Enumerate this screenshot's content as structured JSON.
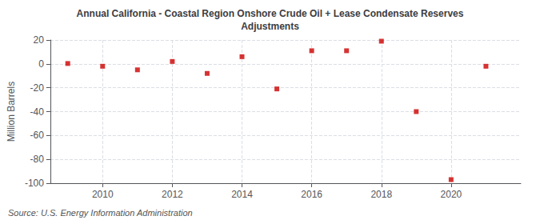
{
  "chart_data": {
    "type": "scatter",
    "title": "Annual California - Coastal Region Onshore Crude Oil + Lease Condensate Reserves\nAdjustments",
    "ylabel": "Million Barrels",
    "source": "Source: U.S. Energy Information Administration",
    "x": [
      2009,
      2010,
      2011,
      2012,
      2013,
      2014,
      2015,
      2016,
      2017,
      2018,
      2019,
      2020,
      2021
    ],
    "values": [
      0.3,
      -2.0,
      -5.0,
      2.0,
      -8.0,
      6.0,
      -21.0,
      11.0,
      11.0,
      19.0,
      -40.0,
      -97.0,
      -2.0
    ],
    "color": "#cc0000",
    "marker": "square",
    "xlim": [
      2008.5,
      2022.0
    ],
    "xticks": [
      2010,
      2012,
      2014,
      2016,
      2018,
      2020
    ],
    "ylim": [
      -100,
      20
    ],
    "yticks": [
      -100,
      -80,
      -60,
      -40,
      -20,
      0,
      20
    ],
    "grid": true
  }
}
